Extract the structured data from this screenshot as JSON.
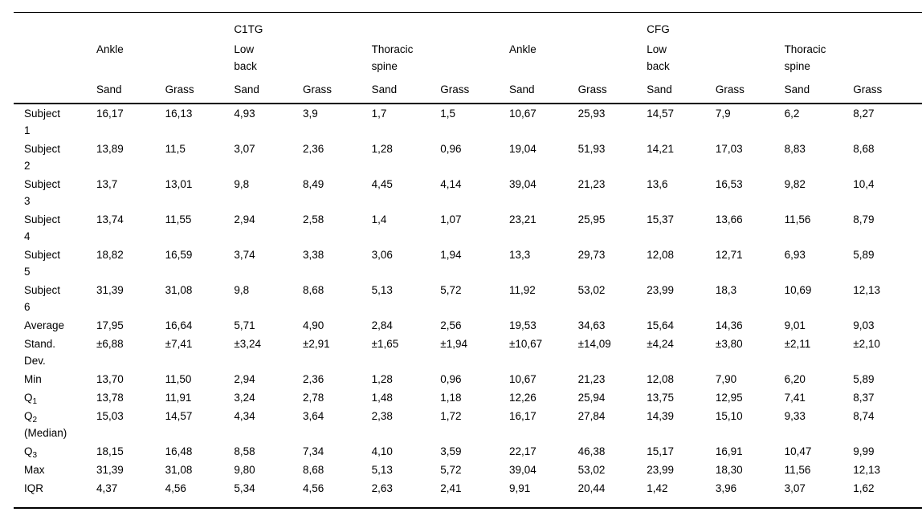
{
  "table": {
    "group_headers": [
      {
        "label": "C1TG",
        "col": 3
      },
      {
        "label": "CFG",
        "col": 9
      }
    ],
    "region_headers": [
      {
        "lines": [
          "Ankle"
        ]
      },
      {
        "lines": [
          "Low",
          "back"
        ]
      },
      {
        "lines": [
          "Thoracic",
          "spine"
        ]
      },
      {
        "lines": [
          "Ankle"
        ]
      },
      {
        "lines": [
          "Low",
          "back"
        ]
      },
      {
        "lines": [
          "Thoracic",
          "spine"
        ]
      }
    ],
    "surface_headers": [
      "Sand",
      "Grass",
      "Sand",
      "Grass",
      "Sand",
      "Grass",
      "Sand",
      "Grass",
      "Sand",
      "Grass",
      "Sand",
      "Grass"
    ],
    "rows": [
      {
        "label": {
          "lines": [
            "Subject",
            "1"
          ]
        },
        "values": [
          "16,17",
          "16,13",
          "4,93",
          "3,9",
          "1,7",
          "1,5",
          "10,67",
          "25,93",
          "14,57",
          "7,9",
          "6,2",
          "8,27"
        ]
      },
      {
        "label": {
          "lines": [
            "Subject",
            "2"
          ]
        },
        "values": [
          "13,89",
          "11,5",
          "3,07",
          "2,36",
          "1,28",
          "0,96",
          "19,04",
          "51,93",
          "14,21",
          "17,03",
          "8,83",
          "8,68"
        ]
      },
      {
        "label": {
          "lines": [
            "Subject",
            "3"
          ]
        },
        "values": [
          "13,7",
          "13,01",
          "9,8",
          "8,49",
          "4,45",
          "4,14",
          "39,04",
          "21,23",
          "13,6",
          "16,53",
          "9,82",
          "10,4"
        ]
      },
      {
        "label": {
          "lines": [
            "Subject",
            "4"
          ]
        },
        "values": [
          "13,74",
          "11,55",
          "2,94",
          "2,58",
          "1,4",
          "1,07",
          "23,21",
          "25,95",
          "15,37",
          "13,66",
          "11,56",
          "8,79"
        ]
      },
      {
        "label": {
          "lines": [
            "Subject",
            "5"
          ]
        },
        "values": [
          "18,82",
          "16,59",
          "3,74",
          "3,38",
          "3,06",
          "1,94",
          "13,3",
          "29,73",
          "12,08",
          "12,71",
          "6,93",
          "5,89"
        ]
      },
      {
        "label": {
          "lines": [
            "Subject",
            "6"
          ]
        },
        "values": [
          "31,39",
          "31,08",
          "9,8",
          "8,68",
          "5,13",
          "5,72",
          "11,92",
          "53,02",
          "23,99",
          "18,3",
          "10,69",
          "12,13"
        ]
      },
      {
        "label": {
          "lines": [
            "Average"
          ]
        },
        "values": [
          "17,95",
          "16,64",
          "5,71",
          "4,90",
          "2,84",
          "2,56",
          "19,53",
          "34,63",
          "15,64",
          "14,36",
          "9,01",
          "9,03"
        ]
      },
      {
        "label": {
          "lines": [
            "Stand.",
            "Dev."
          ]
        },
        "values": [
          "±6,88",
          "±7,41",
          "±3,24",
          "±2,91",
          "±1,65",
          "±1,94",
          "±10,67",
          "±14,09",
          "±4,24",
          "±3,80",
          "±2,11",
          "±2,10"
        ]
      },
      {
        "label": {
          "lines": [
            "Min"
          ]
        },
        "values": [
          "13,70",
          "11,50",
          "2,94",
          "2,36",
          "1,28",
          "0,96",
          "10,67",
          "21,23",
          "12,08",
          "7,90",
          "6,20",
          "5,89"
        ]
      },
      {
        "label": {
          "lines": [
            "Q"
          ],
          "sub": "1"
        },
        "values": [
          "13,78",
          "11,91",
          "3,24",
          "2,78",
          "1,48",
          "1,18",
          "12,26",
          "25,94",
          "13,75",
          "12,95",
          "7,41",
          "8,37"
        ]
      },
      {
        "label": {
          "lines": [
            "Q",
            "(Median)"
          ],
          "sub": "2"
        },
        "values": [
          "15,03",
          "14,57",
          "4,34",
          "3,64",
          "2,38",
          "1,72",
          "16,17",
          "27,84",
          "14,39",
          "15,10",
          "9,33",
          "8,74"
        ]
      },
      {
        "label": {
          "lines": [
            "Q"
          ],
          "sub": "3"
        },
        "values": [
          "18,15",
          "16,48",
          "8,58",
          "7,34",
          "4,10",
          "3,59",
          "22,17",
          "46,38",
          "15,17",
          "16,91",
          "10,47",
          "9,99"
        ]
      },
      {
        "label": {
          "lines": [
            "Max"
          ]
        },
        "values": [
          "31,39",
          "31,08",
          "9,80",
          "8,68",
          "5,13",
          "5,72",
          "39,04",
          "53,02",
          "23,99",
          "18,30",
          "11,56",
          "12,13"
        ]
      },
      {
        "label": {
          "lines": [
            "IQR"
          ]
        },
        "values": [
          "4,37",
          "4,56",
          "5,34",
          "4,56",
          "2,63",
          "2,41",
          "9,91",
          "20,44",
          "1,42",
          "3,96",
          "3,07",
          "1,62"
        ]
      }
    ]
  }
}
